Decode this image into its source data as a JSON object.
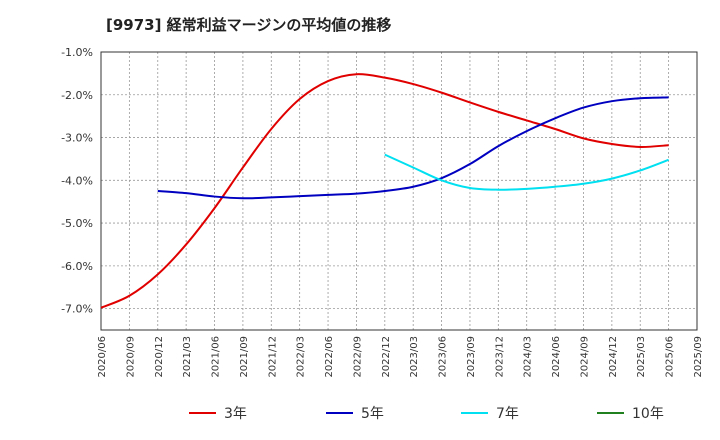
{
  "title": "[9973]  経常利益マージンの平均値の推移",
  "chart_data": {
    "type": "line",
    "title": "[9973]  経常利益マージンの平均値の推移",
    "xlabel": "",
    "ylabel": "",
    "ylim": [
      -7.5,
      -1.0
    ],
    "y_ticks": [
      "-1.0%",
      "-2.0%",
      "-3.0%",
      "-4.0%",
      "-5.0%",
      "-6.0%",
      "-7.0%"
    ],
    "y_tick_values": [
      -1,
      -2,
      -3,
      -4,
      -5,
      -6,
      -7
    ],
    "grid": true,
    "legend_position": "bottom",
    "x_ticks": [
      "2020/06",
      "2020/09",
      "2020/12",
      "2021/03",
      "2021/06",
      "2021/09",
      "2021/12",
      "2022/03",
      "2022/06",
      "2022/09",
      "2022/12",
      "2023/03",
      "2023/06",
      "2023/09",
      "2023/12",
      "2024/03",
      "2024/06",
      "2024/09",
      "2024/12",
      "2025/03",
      "2025/06",
      "2025/09"
    ],
    "series": [
      {
        "name": "3年",
        "color": "#e00000",
        "points": [
          [
            "2020/06",
            -6.98
          ],
          [
            "2020/09",
            -6.7
          ],
          [
            "2020/12",
            -6.2
          ],
          [
            "2021/03",
            -5.5
          ],
          [
            "2021/06",
            -4.65
          ],
          [
            "2021/09",
            -3.7
          ],
          [
            "2021/12",
            -2.8
          ],
          [
            "2022/03",
            -2.1
          ],
          [
            "2022/06",
            -1.68
          ],
          [
            "2022/09",
            -1.52
          ],
          [
            "2022/12",
            -1.6
          ],
          [
            "2023/03",
            -1.75
          ],
          [
            "2023/06",
            -1.95
          ],
          [
            "2023/09",
            -2.18
          ],
          [
            "2023/12",
            -2.4
          ],
          [
            "2024/03",
            -2.6
          ],
          [
            "2024/06",
            -2.8
          ],
          [
            "2024/09",
            -3.02
          ],
          [
            "2024/12",
            -3.15
          ],
          [
            "2025/03",
            -3.22
          ],
          [
            "2025/06",
            -3.18
          ]
        ]
      },
      {
        "name": "5年",
        "color": "#0000c0",
        "points": [
          [
            "2020/12",
            -4.25
          ],
          [
            "2021/03",
            -4.3
          ],
          [
            "2021/06",
            -4.38
          ],
          [
            "2021/09",
            -4.42
          ],
          [
            "2021/12",
            -4.4
          ],
          [
            "2022/03",
            -4.37
          ],
          [
            "2022/06",
            -4.34
          ],
          [
            "2022/09",
            -4.31
          ],
          [
            "2022/12",
            -4.25
          ],
          [
            "2023/03",
            -4.15
          ],
          [
            "2023/06",
            -3.95
          ],
          [
            "2023/09",
            -3.62
          ],
          [
            "2023/12",
            -3.2
          ],
          [
            "2024/03",
            -2.85
          ],
          [
            "2024/06",
            -2.55
          ],
          [
            "2024/09",
            -2.3
          ],
          [
            "2024/12",
            -2.15
          ],
          [
            "2025/03",
            -2.08
          ],
          [
            "2025/06",
            -2.06
          ]
        ]
      },
      {
        "name": "7年",
        "color": "#00e0f0",
        "points": [
          [
            "2022/12",
            -3.4
          ],
          [
            "2023/03",
            -3.7
          ],
          [
            "2023/06",
            -4.0
          ],
          [
            "2023/09",
            -4.18
          ],
          [
            "2023/12",
            -4.22
          ],
          [
            "2024/03",
            -4.2
          ],
          [
            "2024/06",
            -4.15
          ],
          [
            "2024/09",
            -4.08
          ],
          [
            "2024/12",
            -3.96
          ],
          [
            "2025/03",
            -3.77
          ],
          [
            "2025/06",
            -3.52
          ]
        ]
      },
      {
        "name": "10年",
        "color": "#208020",
        "points": []
      }
    ]
  }
}
